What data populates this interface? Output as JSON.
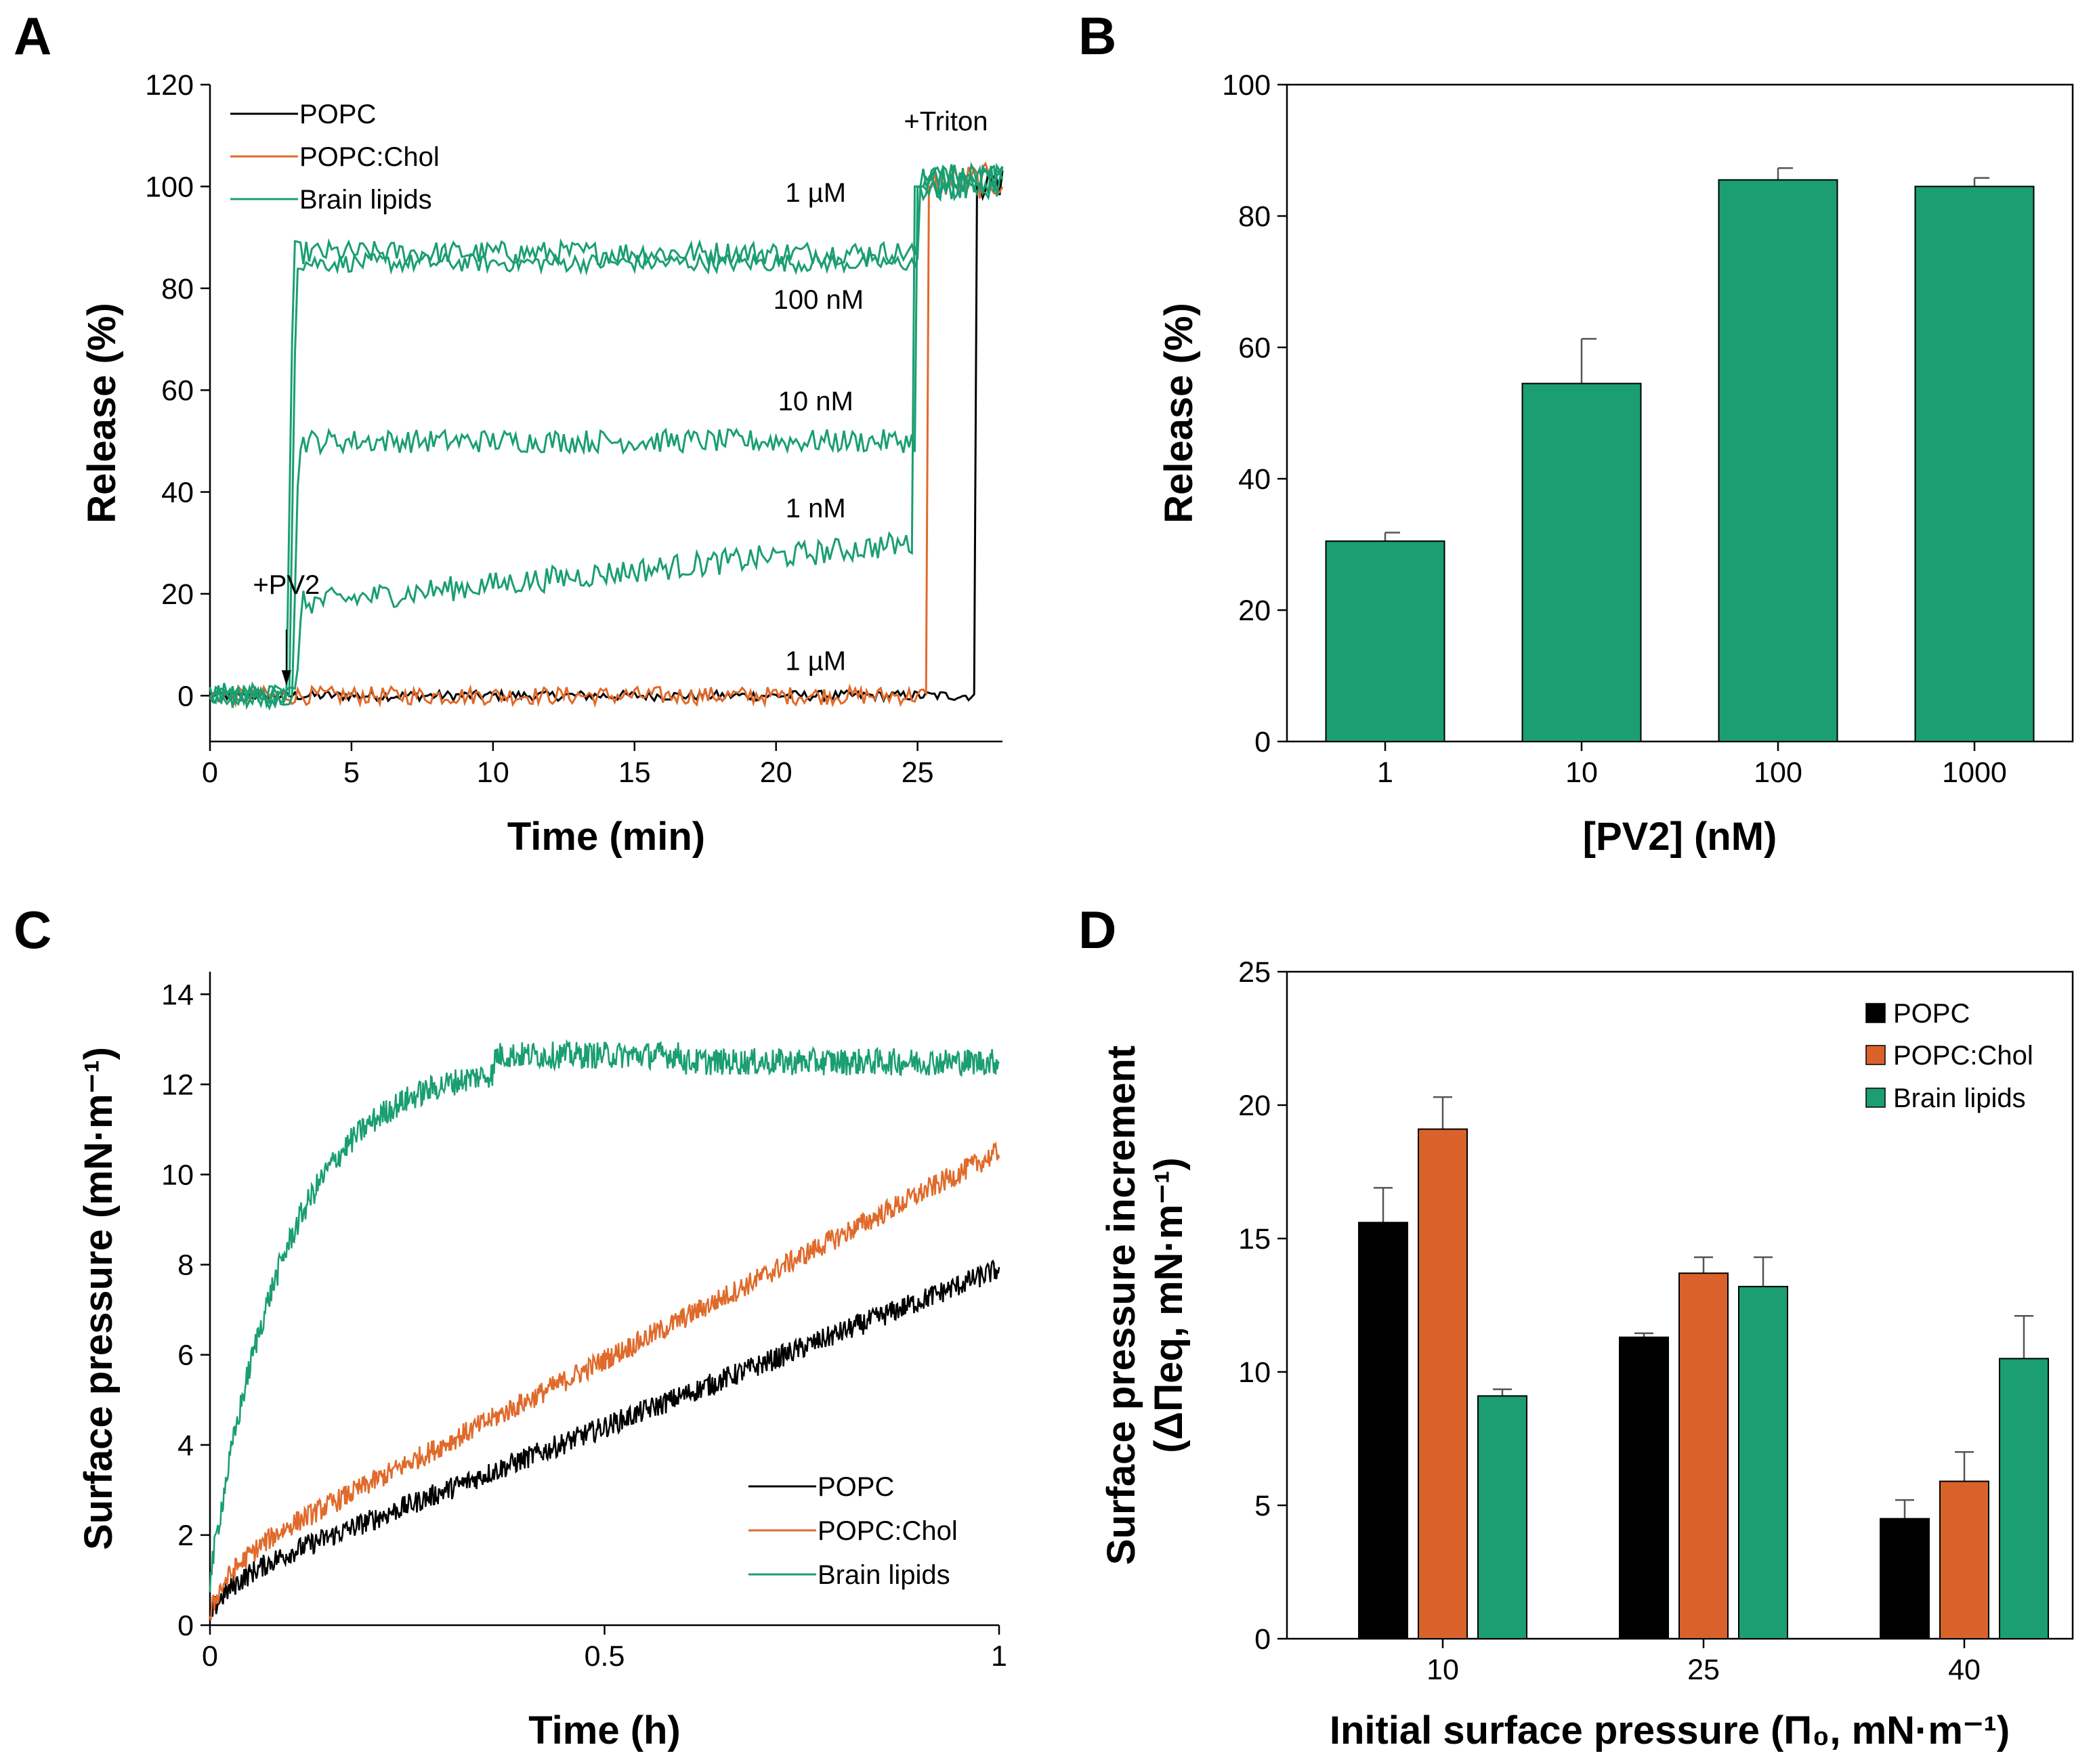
{
  "colors": {
    "popc": "#000000",
    "popc_chol": "#e06a2b",
    "brain": "#1a9e72",
    "bar_brain": "#1a9e72",
    "bar_popc_chol": "#d9622b"
  },
  "chart_data": [
    {
      "panel": "A",
      "type": "line",
      "xlabel": "Time (min)",
      "ylabel": "Release (%)",
      "xlim": [
        0,
        28
      ],
      "ylim": [
        -9,
        120
      ],
      "xticks": [
        0,
        5,
        10,
        15,
        20,
        25
      ],
      "yticks": [
        0,
        20,
        40,
        60,
        80,
        100,
        120
      ],
      "legend": [
        "POPC",
        "POPC:Chol",
        "Brain lipids"
      ],
      "series": [
        {
          "name": "POPC",
          "color_key": "popc",
          "pv2_conc": "1 µM",
          "baseline": 0,
          "inject_time": null,
          "plateau": 0,
          "triton_time": 27.1,
          "noise": 1.0
        },
        {
          "name": "POPC:Chol",
          "color_key": "popc_chol",
          "pv2_conc": "1 µM",
          "baseline": 0,
          "inject_time": null,
          "plateau": 0,
          "triton_time": 25.4,
          "noise": 1.8
        },
        {
          "name": "Brain lipids",
          "color_key": "brain",
          "pv2_conc": "1 µM",
          "baseline": 0,
          "inject_time": 2.7,
          "plateau": 87,
          "triton_time": 25.1,
          "noise": 2.0
        },
        {
          "name": "Brain lipids",
          "color_key": "brain",
          "pv2_conc": "100 nM",
          "baseline": 0,
          "inject_time": 2.8,
          "plateau": 85,
          "triton_time": 25.1,
          "noise": 1.5
        },
        {
          "name": "Brain lipids",
          "color_key": "brain",
          "pv2_conc": "10 nM",
          "baseline": 0,
          "inject_time": 2.9,
          "plateau": 50,
          "triton_time": 25.0,
          "noise": 2.0
        },
        {
          "name": "Brain lipids",
          "color_key": "brain",
          "pv2_conc": "1 nM",
          "baseline": 0,
          "inject_time": 3.0,
          "plateau_start": 18,
          "plateau": 30,
          "triton_time": 24.9,
          "noise": 2.5
        }
      ],
      "annotations": [
        {
          "text": "+PV2",
          "x": 2.7,
          "y": 20
        },
        {
          "text": "+Triton",
          "x": 26.0,
          "y": 111
        },
        {
          "text": "1 µM",
          "x": 21.4,
          "y": 97
        },
        {
          "text": "100 nM",
          "x": 21.5,
          "y": 76
        },
        {
          "text": "10 nM",
          "x": 21.4,
          "y": 56
        },
        {
          "text": "1 nM",
          "x": 21.4,
          "y": 35
        },
        {
          "text": "1 µM",
          "x": 21.4,
          "y": 5
        }
      ]
    },
    {
      "panel": "B",
      "type": "bar",
      "xlabel": "[PV2] (nM)",
      "ylabel": "Release (%)",
      "ylim": [
        0,
        100
      ],
      "yticks": [
        0,
        20,
        40,
        60,
        80,
        100
      ],
      "categories": [
        "1",
        "10",
        "100",
        "1000"
      ],
      "values": [
        30.5,
        54.5,
        85.5,
        84.5
      ],
      "errors": [
        1.3,
        6.8,
        1.8,
        1.3
      ]
    },
    {
      "panel": "C",
      "type": "line",
      "xlabel": "Time (h)",
      "ylabel": "Surface pressure (mN·m⁻¹)",
      "xlim": [
        0,
        1
      ],
      "ylim": [
        0,
        14.5
      ],
      "xticks": [
        0,
        0.5,
        1
      ],
      "xtick_labels": [
        "0",
        "0.5",
        "1"
      ],
      "yticks": [
        0,
        2,
        4,
        6,
        8,
        10,
        12,
        14
      ],
      "legend": [
        "POPC",
        "POPC:Chol",
        "Brain lipids"
      ],
      "series": [
        {
          "name": "POPC",
          "color_key": "popc",
          "shape": "sqrt-linear",
          "start": 0,
          "y_at_0.1": 1.6,
          "end": 7.9,
          "noise": 0.25
        },
        {
          "name": "POPC:Chol",
          "color_key": "popc_chol",
          "shape": "sqrt-linear",
          "start": 0,
          "y_at_0.1": 2.2,
          "end": 10.5,
          "noise": 0.25
        },
        {
          "name": "Brain lipids",
          "color_key": "brain",
          "shape": "saturating",
          "start": 1.0,
          "plateau": 12.5,
          "time_to_plateau": 0.36,
          "noise": 0.3
        }
      ]
    },
    {
      "panel": "D",
      "type": "bar",
      "xlabel": "Initial surface pressure (Π₀, mN·m⁻¹)",
      "ylabel_line1": "Surface pressure increment",
      "ylabel_line2": "(ΔΠeq, mN·m⁻¹)",
      "ylim": [
        0,
        25
      ],
      "yticks": [
        0,
        5,
        10,
        15,
        20,
        25
      ],
      "categories": [
        "10",
        "25",
        "40"
      ],
      "series": [
        {
          "name": "POPC",
          "color_key": "popc",
          "values": [
            15.6,
            11.3,
            4.5
          ],
          "errors": [
            1.3,
            0.15,
            0.7
          ]
        },
        {
          "name": "POPC:Chol",
          "color_key": "bar_popc_chol",
          "values": [
            19.1,
            13.7,
            5.9
          ],
          "errors": [
            1.2,
            0.6,
            1.1
          ]
        },
        {
          "name": "Brain lipids",
          "color_key": "bar_brain",
          "values": [
            9.1,
            13.2,
            10.5
          ],
          "errors": [
            0.25,
            1.1,
            1.6
          ]
        }
      ]
    }
  ]
}
